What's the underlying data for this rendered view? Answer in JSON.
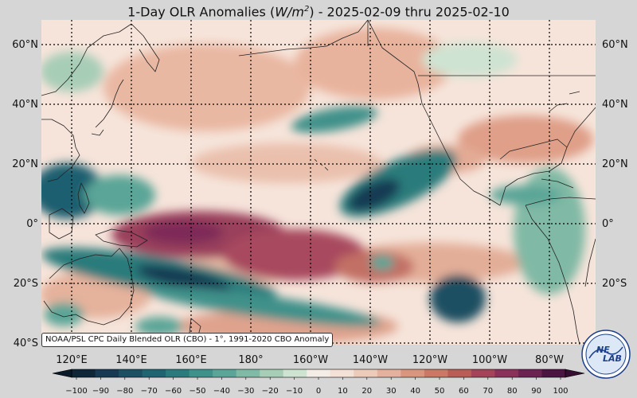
{
  "title_prefix": "1-Day OLR Anomalies (",
  "title_unit_w": "W/m",
  "title_unit_exp": "2",
  "title_suffix": ") - 2025-02-09 thru 2025-02-10",
  "caption": "NOAA/PSL CPC Daily Blended OLR (CBO) - 1°, 1991-2020 CBO Anomaly",
  "logo_text": {
    "top": "NE",
    "bottom": "LAB"
  },
  "lat_labels": [
    "60°N",
    "40°N",
    "20°N",
    "0°",
    "20°S",
    "40°S"
  ],
  "lon_labels": [
    "120°E",
    "140°E",
    "160°E",
    "180°",
    "160°W",
    "140°W",
    "120°W",
    "100°W",
    "80°W"
  ],
  "colorbar": {
    "ticks": [
      "−100",
      "−90",
      "−80",
      "−70",
      "−60",
      "−50",
      "−40",
      "−30",
      "−20",
      "−10",
      "0",
      "10",
      "20",
      "30",
      "40",
      "50",
      "60",
      "70",
      "80",
      "90",
      "100"
    ],
    "colors": [
      "#0f2538",
      "#173a52",
      "#1c4f62",
      "#1f6470",
      "#2b7b7c",
      "#3f918a",
      "#5aa597",
      "#80b9a5",
      "#a7cdb7",
      "#cfe3d2",
      "#f4ece6",
      "#f3e0d6",
      "#eccbbb",
      "#e3b19d",
      "#d8967f",
      "#c97965",
      "#b95d57",
      "#a4445a",
      "#8a3159",
      "#6b2352",
      "#4a1540"
    ]
  },
  "colors": {
    "background": "#d6d6d6",
    "positive_strong": "#a4445a",
    "positive_mid": "#d8967f",
    "positive_weak": "#f0d6c8",
    "negative_strong": "#173a52",
    "negative_mid": "#2b7b7c",
    "negative_weak": "#a7cdb7"
  }
}
